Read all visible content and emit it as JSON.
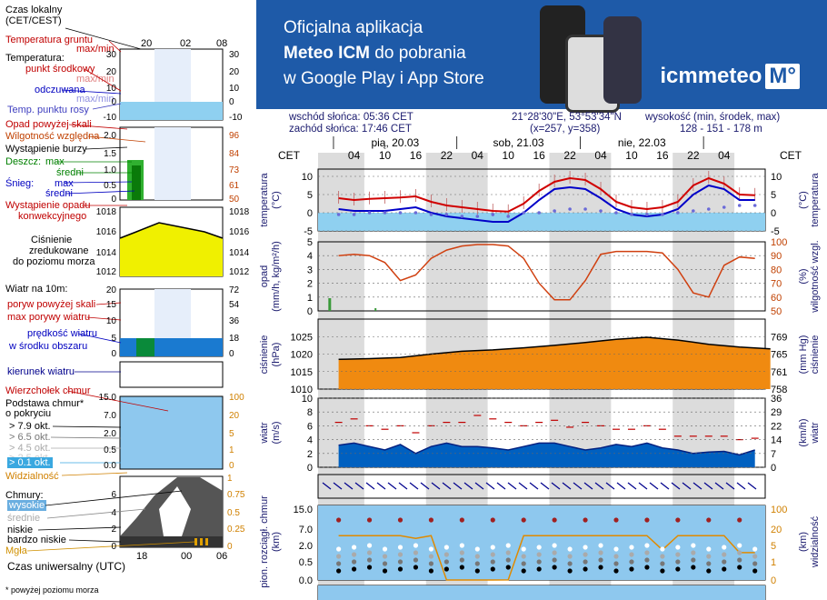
{
  "legend": {
    "time_local": "Czas lokalny\n(CET/CEST)",
    "time_local_l1": "Czas lokalny",
    "time_local_l2": "(CET/CEST)",
    "ground_temp": "Temperatura gruntu",
    "ground_temp_mm": "max/min",
    "temperature": "Temperatura:",
    "mid_point": "punkt środkowy",
    "max_min": "max/min",
    "felt": "odczuwana",
    "felt_mm": "max/min",
    "dew_point": "Temp. punktu rosy",
    "precip_above": "Opad powyżej skali",
    "rel_humidity": "Wilgotność względna",
    "storm": "Wystąpienie burzy",
    "rain": "Deszcz:",
    "rain_max": "max",
    "rain_mid": "średni",
    "snow": "Śnieg:",
    "snow_max": "max",
    "snow_mid": "średni",
    "conv_precip_l1": "Wystąpienie opadu",
    "conv_precip_l2": "konwekcyjnego",
    "pressure_l1": "Ciśnienie",
    "pressure_l2": "zredukowane",
    "pressure_l3": "do poziomu morza",
    "wind_10m": "Wiatr na 10m:",
    "gusts_above": "poryw powyżej skali",
    "max_gusts": "max porywy wiatru",
    "wind_speed": "prędkość wiatru",
    "wind_area": "w środku obszaru",
    "wind_dir": "kierunek wiatru",
    "cloud_top": "Wierzchołek chmur",
    "cloud_base_l1": "Podstawa chmur*",
    "cloud_base_l2": "o pokryciu",
    "okt79": "> 7.9 okt.",
    "okt65": "> 6.5 okt.",
    "okt45": "> 4.5 okt.",
    "okt25": "> 2.5 okt.",
    "okt01": "> 0.1 okt.",
    "visibility": "Widzialność",
    "clouds": "Chmury:",
    "high": "wysokie",
    "mid": "średnie",
    "low": "niskie",
    "very_low": "bardzo niskie",
    "fog": "Mgła",
    "utc": "Czas uniwersalny (UTC)",
    "footnote": "* powyżej poziomu morza",
    "legend_hours_top": [
      "20",
      "02",
      "08"
    ],
    "legend_hours_bottom": [
      "18",
      "00",
      "06"
    ],
    "legend_cet": "CET"
  },
  "banner": {
    "line1": "Oficjalna aplikacja",
    "line2_bold": "Meteo ICM",
    "line2_rest": "do pobrania",
    "line3": "w Google Play i App Store",
    "logo": "icmmeteo",
    "logo_mark": "M°"
  },
  "header": {
    "sunrise": "wschód słońca: 05:36 CET",
    "sunset": "zachód słońca: 17:46 CET",
    "coords": "21°28'30\"E, 53°53'34\"N",
    "grid": "(x=257,  y=358)",
    "elev_label": "wysokość (min, środek, max)",
    "elev_values": "128 - 151 - 178 m"
  },
  "main": {
    "cet": "CET",
    "days": [
      "pią, 20.03",
      "sob, 21.03",
      "nie, 22.03"
    ],
    "hours": [
      "04",
      "10",
      "16",
      "22",
      "04",
      "10",
      "16",
      "22",
      "04",
      "10",
      "16",
      "22",
      "04"
    ],
    "panels": {
      "temp": {
        "left_label": "temperatura\n(°C)",
        "right_label": "(°C)\ntemperatura",
        "left_ticks": [
          "10",
          "5",
          "0",
          "-5"
        ],
        "right_ticks": [
          "10",
          "5",
          "0",
          "-5"
        ]
      },
      "precip": {
        "left_label": "opad\n(mm/h, kg/m²/h)",
        "right_label": "(%)\nwilgotność wzgl.",
        "left_ticks": [
          "5",
          "4",
          "3",
          "2",
          "1",
          "0"
        ],
        "right_ticks": [
          "100",
          "90",
          "80",
          "70",
          "60",
          "50"
        ]
      },
      "pressure": {
        "left_label": "ciśnienie\n(hPa)",
        "right_label": "(mm Hg)\nciśnienie",
        "left_ticks": [
          "1025",
          "1020",
          "1015",
          "1010"
        ],
        "right_ticks": [
          "769",
          "765",
          "761",
          "758"
        ]
      },
      "wind": {
        "left_label": "wiatr\n(m/s)",
        "right_label": "(km/h)\nwiatr",
        "left_ticks": [
          "10",
          "8",
          "6",
          "4",
          "2",
          "0"
        ],
        "right_ticks": [
          "36",
          "29",
          "22",
          "14",
          "7",
          "0"
        ]
      },
      "cloud": {
        "left_label": "pion. rozciągł. chmur\n(km)",
        "right_label": "(km)\nwidzialność",
        "left_ticks": [
          "15.0",
          "7.0",
          "2.0",
          "0.5",
          "0.0"
        ],
        "right_ticks": [
          "100",
          "20",
          "5",
          "1",
          "0"
        ]
      }
    }
  },
  "chart_data": [
    {
      "type": "line",
      "title": "temperatura",
      "ylabel": "temperatura (°C)",
      "ylim": [
        -5,
        12
      ],
      "x_hours_cet": [
        1,
        4,
        7,
        10,
        13,
        16,
        19,
        22,
        25,
        28,
        31,
        34,
        37,
        40,
        43,
        46,
        49,
        52,
        55,
        58,
        61,
        64,
        67,
        70,
        73,
        76,
        79,
        82
      ],
      "series": [
        {
          "name": "punkt środkowy",
          "values": [
            4,
            3.5,
            3.8,
            4,
            4.2,
            4.5,
            3,
            2,
            1.5,
            1,
            0.5,
            0.3,
            2.5,
            6,
            8.5,
            9.5,
            9,
            6.5,
            3,
            1.5,
            1,
            1.5,
            3,
            7.5,
            9.5,
            8,
            5,
            4.8
          ]
        },
        {
          "name": "odczuwana",
          "values": [
            1,
            0.5,
            0.5,
            0.5,
            1,
            1.5,
            0,
            -1,
            -1.5,
            -2,
            -2.5,
            -2.5,
            0,
            3.5,
            6.5,
            7,
            6.5,
            4,
            1,
            -0.5,
            -1,
            -0.5,
            1,
            5,
            7.5,
            6.5,
            3.5,
            3.5
          ]
        },
        {
          "name": "Temp. punktu rosy",
          "values": [
            -0.5,
            -0.5,
            0,
            0,
            0,
            0,
            -0.5,
            -0.5,
            -1,
            -1,
            -0.5,
            -1,
            0,
            0,
            0.5,
            1,
            1,
            0.5,
            0,
            -0.5,
            -0.5,
            -0.5,
            0,
            0.5,
            1,
            1.5,
            2,
            2
          ]
        }
      ]
    },
    {
      "type": "line",
      "title": "opad / wilgotność",
      "ylabel": "opad (mm/h, kg/m²/h)",
      "ylim": [
        0,
        5
      ],
      "y2label": "wilgotność wzgl. (%)",
      "y2lim": [
        50,
        100
      ],
      "x_hours_cet": [
        1,
        4,
        7,
        10,
        13,
        16,
        19,
        22,
        25,
        28,
        31,
        34,
        37,
        40,
        43,
        46,
        49,
        52,
        55,
        58,
        61,
        64,
        67,
        70,
        73,
        76,
        79,
        82
      ],
      "series": [
        {
          "name": "Wilgotność względna",
          "values": [
            90,
            91,
            90,
            85,
            72,
            76,
            88,
            94,
            97,
            98,
            98,
            97,
            88,
            70,
            58,
            58,
            72,
            91,
            93,
            93,
            93,
            92,
            80,
            63,
            60,
            83,
            89,
            88
          ]
        }
      ]
    },
    {
      "type": "area",
      "title": "ciśnienie",
      "ylabel": "ciśnienie (hPa)",
      "ylim": [
        1010,
        1030
      ],
      "x_hours_cet": [
        1,
        7,
        13,
        19,
        25,
        31,
        37,
        43,
        49,
        55,
        61,
        67,
        73,
        79,
        85
      ],
      "values": [
        1018.5,
        1018.7,
        1019,
        1020,
        1020.8,
        1021.2,
        1021.8,
        1022.5,
        1023.3,
        1024.2,
        1024.8,
        1024,
        1022.8,
        1022,
        1021.5
      ]
    },
    {
      "type": "area",
      "title": "wiatr",
      "ylabel": "wiatr (m/s)",
      "ylim": [
        0,
        10
      ],
      "x_hours_cet": [
        1,
        4,
        7,
        10,
        13,
        16,
        19,
        22,
        25,
        28,
        31,
        34,
        37,
        40,
        43,
        46,
        49,
        52,
        55,
        58,
        61,
        64,
        67,
        70,
        73,
        76,
        79,
        82
      ],
      "series": [
        {
          "name": "prędkość wiatru",
          "values": [
            3.2,
            3.5,
            3,
            2.5,
            3.3,
            2,
            3,
            3.5,
            3,
            3,
            2.8,
            2.5,
            3,
            3.5,
            3.5,
            3,
            2.5,
            2.8,
            3.3,
            3,
            3.5,
            2.8,
            2.5,
            2,
            2.2,
            2.3,
            1.8,
            2.5
          ]
        },
        {
          "name": "max porywy wiatru",
          "values": [
            6.5,
            7,
            6,
            5.5,
            6,
            5,
            6,
            6.5,
            6.5,
            7.5,
            7,
            6.5,
            6,
            6.5,
            6.8,
            5.8,
            6.5,
            6,
            5.5,
            5.5,
            6,
            5.5,
            4.5,
            4.5,
            4.5,
            4.5,
            4,
            4.2
          ]
        }
      ]
    },
    {
      "type": "line",
      "title": "widzialność",
      "y2label": "widzialność (km)",
      "y2lim": [
        0,
        100
      ],
      "x_hours_cet": [
        1,
        4,
        7,
        10,
        13,
        16,
        19,
        22,
        25,
        28,
        31,
        34,
        37,
        40,
        43,
        46,
        49,
        52,
        55,
        58,
        61,
        64,
        67,
        70,
        73,
        76,
        79,
        82
      ],
      "series": [
        {
          "name": "Widzialność",
          "values": [
            20,
            20,
            20,
            20,
            20,
            18,
            20,
            0.2,
            0.1,
            0.1,
            0.2,
            0.5,
            20,
            20,
            20,
            20,
            20,
            20,
            20,
            20,
            20,
            10,
            20,
            20,
            20,
            20,
            8,
            8
          ]
        }
      ]
    }
  ],
  "colors": {
    "banner": "#1e5aa8",
    "temp": "#d00000",
    "felt": "#0000c8",
    "dew": "#6a6ad8",
    "humidity": "#d04010",
    "wind": "#0060c0",
    "pressure": "#f07000"
  }
}
